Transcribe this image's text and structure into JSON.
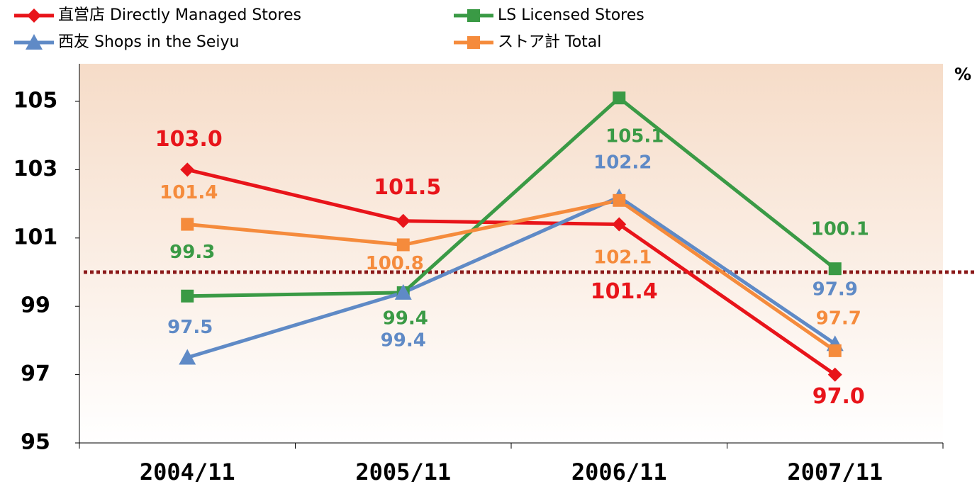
{
  "chart_data": {
    "type": "line",
    "y_unit": "%",
    "categories": [
      "2004/11",
      "2005/11",
      "2006/11",
      "2007/11"
    ],
    "series": [
      {
        "name": "直営店 Directly Managed Stores",
        "color": "#e8141a",
        "marker": "diamond",
        "values": [
          103.0,
          101.5,
          101.4,
          97.0
        ],
        "value_labels": [
          "103.0",
          "101.5",
          "101.4",
          "97.0"
        ]
      },
      {
        "name": "LS Licensed Stores",
        "color": "#3a9a45",
        "marker": "square",
        "values": [
          99.3,
          99.4,
          105.1,
          100.1
        ],
        "value_labels": [
          "99.3",
          "99.4",
          "105.1",
          "100.1"
        ]
      },
      {
        "name": "西友 Shops in the Seiyu",
        "color": "#5f8ac6",
        "marker": "triangle",
        "values": [
          97.5,
          99.4,
          102.2,
          97.9
        ],
        "value_labels": [
          "97.5",
          "99.4",
          "102.2",
          "97.9"
        ]
      },
      {
        "name": "ストア計 Total",
        "color": "#f58b3c",
        "marker": "square",
        "values": [
          101.4,
          100.8,
          102.1,
          97.7
        ],
        "value_labels": [
          "101.4",
          "100.8",
          "102.1",
          "97.7"
        ]
      }
    ],
    "reference_line": 100,
    "ylim": [
      95,
      106.1
    ],
    "yticks": [
      95,
      97,
      99,
      101,
      103,
      105
    ]
  }
}
